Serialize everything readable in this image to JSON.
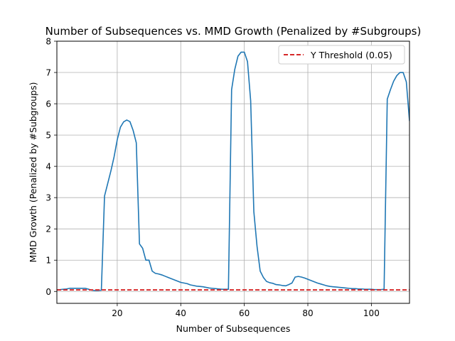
{
  "chart_data": {
    "type": "line",
    "title": "Number of Subsequences vs. MMD Growth (Penalized by #Subgroups)",
    "xlabel": "Number of Subsequences",
    "ylabel": "MMD Growth (Penalized by #Subgroups)",
    "xlim": [
      1,
      112
    ],
    "ylim": [
      -0.38,
      8.0
    ],
    "xticks": [
      20,
      40,
      60,
      80,
      100
    ],
    "yticks": [
      0,
      1,
      2,
      3,
      4,
      5,
      6,
      7,
      8
    ],
    "grid": true,
    "legend_position": "top-right",
    "series": [
      {
        "color": "#1f77b4",
        "x": [
          1,
          2,
          3,
          4,
          5,
          6,
          7,
          8,
          9,
          10,
          11,
          12,
          13,
          14,
          15,
          16,
          17,
          18,
          19,
          20,
          21,
          22,
          23,
          24,
          25,
          26,
          27,
          28,
          29,
          30,
          31,
          32,
          33,
          34,
          35,
          36,
          37,
          38,
          39,
          40,
          41,
          42,
          43,
          44,
          45,
          46,
          47,
          48,
          49,
          50,
          51,
          52,
          53,
          54,
          55,
          56,
          57,
          58,
          59,
          60,
          61,
          62,
          63,
          64,
          65,
          66,
          67,
          68,
          69,
          70,
          71,
          72,
          73,
          74,
          75,
          76,
          77,
          78,
          79,
          80,
          81,
          82,
          83,
          84,
          85,
          86,
          87,
          88,
          89,
          90,
          91,
          92,
          93,
          94,
          95,
          96,
          97,
          98,
          99,
          100,
          101,
          102,
          103,
          104,
          105,
          106,
          107,
          108,
          109,
          110,
          111,
          112
        ],
        "y": [
          0.05,
          0.06,
          0.07,
          0.08,
          0.1,
          0.1,
          0.1,
          0.1,
          0.1,
          0.1,
          0.07,
          0.04,
          0.03,
          0.03,
          0.04,
          3.05,
          3.45,
          3.85,
          4.3,
          4.85,
          5.25,
          5.42,
          5.48,
          5.43,
          5.15,
          4.75,
          1.52,
          1.38,
          1.0,
          1.0,
          0.65,
          0.58,
          0.56,
          0.53,
          0.49,
          0.45,
          0.41,
          0.37,
          0.33,
          0.29,
          0.27,
          0.25,
          0.21,
          0.19,
          0.17,
          0.16,
          0.15,
          0.13,
          0.11,
          0.1,
          0.09,
          0.08,
          0.07,
          0.07,
          0.07,
          6.45,
          7.1,
          7.52,
          7.65,
          7.65,
          7.35,
          6.1,
          2.55,
          1.45,
          0.65,
          0.45,
          0.32,
          0.28,
          0.26,
          0.22,
          0.21,
          0.19,
          0.18,
          0.22,
          0.27,
          0.46,
          0.48,
          0.46,
          0.43,
          0.39,
          0.35,
          0.31,
          0.27,
          0.24,
          0.21,
          0.18,
          0.16,
          0.15,
          0.14,
          0.13,
          0.12,
          0.11,
          0.1,
          0.09,
          0.09,
          0.08,
          0.08,
          0.07,
          0.07,
          0.07,
          0.06,
          0.06,
          0.06,
          0.07,
          6.15,
          6.45,
          6.72,
          6.9,
          7.0,
          7.0,
          6.7,
          5.45
        ]
      },
      {
        "name": "Y Threshold (0.05)",
        "color": "#d62728",
        "dashed": true,
        "x": [
          1,
          112
        ],
        "y": [
          0.05,
          0.05
        ]
      }
    ]
  }
}
